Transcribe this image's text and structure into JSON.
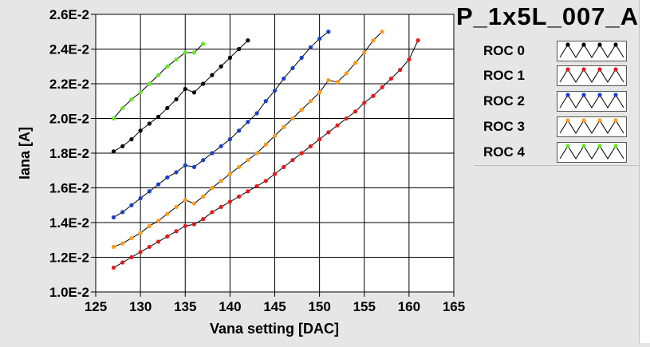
{
  "title": "P_1x5L_007_A",
  "chart_data": {
    "type": "line",
    "xlabel": "Vana setting [DAC]",
    "ylabel": "Iana [A]",
    "xlim": [
      125,
      165
    ],
    "ylim": [
      0.01,
      0.026
    ],
    "x_ticks": [
      125,
      130,
      135,
      140,
      145,
      150,
      155,
      160,
      165
    ],
    "y_ticks": [
      0.01,
      0.012,
      0.014,
      0.016,
      0.018,
      0.02,
      0.022,
      0.024,
      0.026
    ],
    "x_tick_labels": [
      "125",
      "130",
      "135",
      "140",
      "145",
      "150",
      "155",
      "160",
      "165"
    ],
    "y_tick_labels": [
      "1.0E-2",
      "1.2E-2",
      "1.4E-2",
      "1.6E-2",
      "1.8E-2",
      "2.0E-2",
      "2.2E-2",
      "2.4E-2",
      "2.6E-2"
    ],
    "grid": true,
    "legend_position": "right",
    "series": [
      {
        "name": "ROC 0",
        "color": "#000000",
        "x": [
          127,
          128,
          129,
          130,
          131,
          132,
          133,
          134,
          135,
          136,
          137,
          138,
          139,
          140,
          141,
          142
        ],
        "y": [
          0.0181,
          0.0184,
          0.0188,
          0.0193,
          0.0197,
          0.0201,
          0.0206,
          0.0211,
          0.0217,
          0.0215,
          0.022,
          0.0225,
          0.023,
          0.0235,
          0.024,
          0.0245
        ]
      },
      {
        "name": "ROC 1",
        "color": "#e41a1a",
        "x": [
          127,
          128,
          129,
          130,
          131,
          132,
          133,
          134,
          135,
          136,
          137,
          138,
          139,
          140,
          141,
          142,
          143,
          144,
          145,
          146,
          147,
          148,
          149,
          150,
          151,
          152,
          153,
          154,
          155,
          156,
          157,
          158,
          159,
          160,
          161
        ],
        "y": [
          0.0114,
          0.0117,
          0.012,
          0.0123,
          0.0126,
          0.0129,
          0.0132,
          0.0135,
          0.0138,
          0.0139,
          0.0142,
          0.0146,
          0.0149,
          0.0152,
          0.0155,
          0.0158,
          0.0161,
          0.0164,
          0.0168,
          0.0172,
          0.0176,
          0.018,
          0.0184,
          0.0188,
          0.0192,
          0.0196,
          0.02,
          0.0204,
          0.0209,
          0.0213,
          0.0218,
          0.0223,
          0.0228,
          0.0234,
          0.0245
        ]
      },
      {
        "name": "ROC 2",
        "color": "#1a3fc8",
        "x": [
          127,
          128,
          129,
          130,
          131,
          132,
          133,
          134,
          135,
          136,
          137,
          138,
          139,
          140,
          141,
          142,
          143,
          144,
          145,
          146,
          147,
          148,
          149,
          150,
          151
        ],
        "y": [
          0.0143,
          0.0146,
          0.015,
          0.0154,
          0.0158,
          0.0162,
          0.0166,
          0.0169,
          0.0173,
          0.0172,
          0.0176,
          0.018,
          0.0184,
          0.0188,
          0.0193,
          0.0198,
          0.0203,
          0.021,
          0.0216,
          0.0223,
          0.0229,
          0.0235,
          0.0241,
          0.0246,
          0.025
        ]
      },
      {
        "name": "ROC 3",
        "color": "#ff9a1a",
        "x": [
          127,
          128,
          129,
          130,
          131,
          132,
          133,
          134,
          135,
          136,
          137,
          138,
          139,
          140,
          141,
          142,
          143,
          144,
          145,
          146,
          147,
          148,
          149,
          150,
          151,
          152,
          153,
          154,
          155,
          156,
          157
        ],
        "y": [
          0.0126,
          0.0128,
          0.0131,
          0.0134,
          0.0138,
          0.0141,
          0.0145,
          0.0149,
          0.0153,
          0.0151,
          0.0155,
          0.016,
          0.0164,
          0.0168,
          0.0172,
          0.0176,
          0.018,
          0.0185,
          0.019,
          0.0195,
          0.02,
          0.0205,
          0.021,
          0.0215,
          0.0222,
          0.0221,
          0.0226,
          0.0232,
          0.0238,
          0.0245,
          0.025
        ]
      },
      {
        "name": "ROC 4",
        "color": "#66e626",
        "x": [
          127,
          128,
          129,
          130,
          131,
          132,
          133,
          134,
          135,
          136,
          137
        ],
        "y": [
          0.02,
          0.0206,
          0.0211,
          0.0215,
          0.022,
          0.0225,
          0.023,
          0.0234,
          0.0238,
          0.0238,
          0.0243
        ]
      }
    ]
  }
}
